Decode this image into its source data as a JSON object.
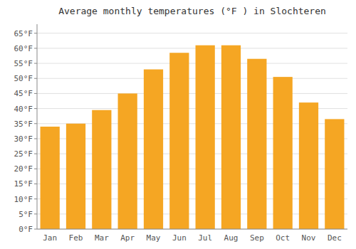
{
  "chart_data": {
    "type": "bar",
    "title": "Average monthly temperatures (°F ) in Slochteren",
    "categories": [
      "Jan",
      "Feb",
      "Mar",
      "Apr",
      "May",
      "Jun",
      "Jul",
      "Aug",
      "Sep",
      "Oct",
      "Nov",
      "Dec"
    ],
    "values": [
      34.0,
      35.0,
      39.5,
      45.0,
      53.0,
      58.5,
      61.0,
      61.0,
      56.5,
      50.5,
      42.0,
      36.5
    ],
    "color": "#F5A623",
    "ylim": [
      0,
      68
    ],
    "yticks": [
      {
        "value": 0,
        "label": "0°F"
      },
      {
        "value": 5,
        "label": "5°F"
      },
      {
        "value": 10,
        "label": "10°F"
      },
      {
        "value": 15,
        "label": "15°F"
      },
      {
        "value": 20,
        "label": "20°F"
      },
      {
        "value": 25,
        "label": "25°F"
      },
      {
        "value": 30,
        "label": "30°F"
      },
      {
        "value": 35,
        "label": "35°F"
      },
      {
        "value": 40,
        "label": "40°F"
      },
      {
        "value": 45,
        "label": "45°F"
      },
      {
        "value": 50,
        "label": "50°F"
      },
      {
        "value": 55,
        "label": "55°F"
      },
      {
        "value": 60,
        "label": "60°F"
      },
      {
        "value": 65,
        "label": "65°F"
      }
    ],
    "grid": true
  }
}
